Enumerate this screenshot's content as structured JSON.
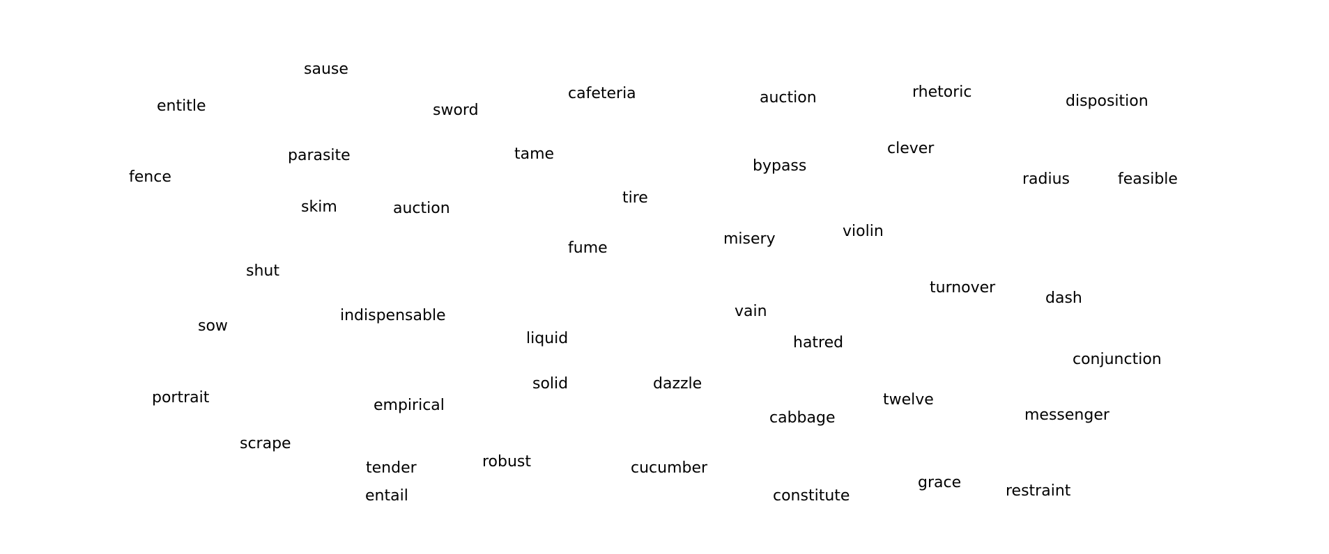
{
  "words": [
    "sause",
    "entitle",
    "sword",
    "cafeteria",
    "auction",
    "rhetoric",
    "disposition",
    "parasite",
    "tame",
    "bypass",
    "clever",
    "fence",
    "radius",
    "feasible",
    "skim",
    "auction",
    "tire",
    "violin",
    "misery",
    "fume",
    "shut",
    "turnover",
    "dash",
    "vain",
    "indispensable",
    "sow",
    "liquid",
    "hatred",
    "conjunction",
    "solid",
    "dazzle",
    "portrait",
    "empirical",
    "twelve",
    "messenger",
    "cabbage",
    "scrape",
    "tender",
    "robust",
    "cucumber",
    "grace",
    "restraint",
    "entail",
    "constitute"
  ]
}
